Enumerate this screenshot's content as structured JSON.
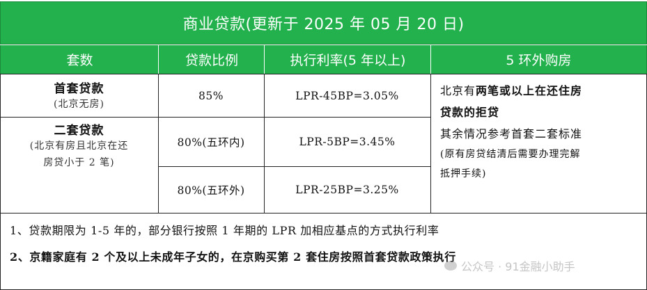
{
  "title": "商业贷款(更新于 2025 年 05 月 20 日)",
  "headers": [
    "套数",
    "贷款比例",
    "执行利率(5 年以上)",
    "5 环外购房"
  ],
  "rows": {
    "first": {
      "name": "首套贷款",
      "note": "(北京无房)",
      "ratio": "85%",
      "rate": "LPR-45BP=3.05%"
    },
    "second": {
      "name": "二套贷款",
      "note1": "(北京有房且北京在还",
      "note2": "房贷小于 2 笔)",
      "ratio_inner": "80%(五环内)",
      "rate_inner": "LPR-5BP=3.45%",
      "ratio_outer": "80%(五环外)",
      "rate_outer": "LPR-25BP=3.25%"
    }
  },
  "side": {
    "line1_a": "北京有",
    "line1_b": "两笔或以上在还住房",
    "line2": "贷款的拒贷",
    "line3": "其余情况参考首套二套标准",
    "line4": "(原有房贷结清后需要办理完解",
    "line5": "抵押手续)"
  },
  "notes": [
    "1、贷款期限为 1-5 年的，部分银行按照 1 年期的 LPR 加相应基点的方式执行利率",
    "2、京籍家庭有 2 个及以上未成年子女的，在京购买第 2 套住房按照首套贷款政策执行"
  ],
  "watermark": "公众号 · 91金融小助手"
}
